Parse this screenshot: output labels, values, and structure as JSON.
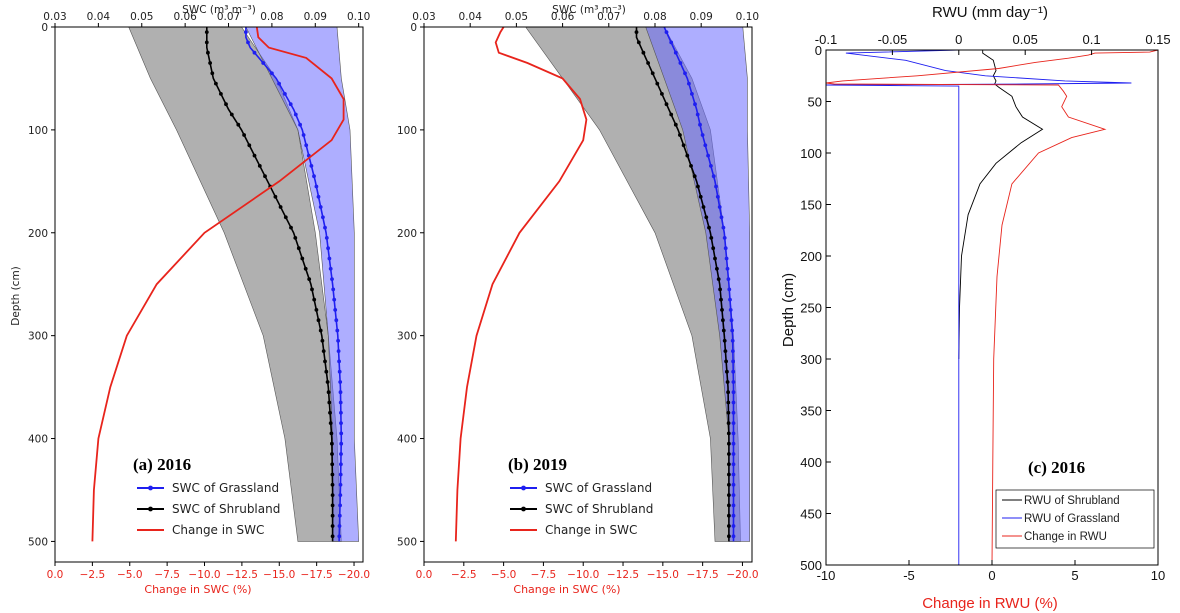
{
  "colors": {
    "grass": "#1f1ff0",
    "shrub": "#000000",
    "change": "#e8241c",
    "grass_band": "#6b6bff",
    "shrub_band": "#9a9a9a",
    "overlap_band": "#5a5a8c"
  },
  "chart_data": [
    {
      "type": "line",
      "panel_label": "(a) 2016",
      "x_top_label": "SWC (m³ m⁻³)",
      "x_top_ticks": [
        0.03,
        0.04,
        0.05,
        0.06,
        0.07,
        0.08,
        0.09,
        0.1
      ],
      "x_top_tick_labels": [
        "0.03",
        "0.04",
        "0.05",
        "0.06",
        "0.07",
        "0.08",
        "0.09",
        "0.10"
      ],
      "x_top_range": [
        0.03,
        0.101
      ],
      "x_bottom_label": "Change in SWC (%)",
      "x_bottom_ticks": [
        0,
        -2.5,
        -5,
        -7.5,
        -10,
        -12.5,
        -15,
        -17.5,
        -20
      ],
      "x_bottom_tick_labels": [
        "0.0",
        "−2.5",
        "−5.0",
        "−7.5",
        "−10.0",
        "−12.5",
        "−15.0",
        "−17.5",
        "−20.0"
      ],
      "x_bottom_range": [
        0,
        -20.6
      ],
      "y_label": "Depth (cm)",
      "y_ticks": [
        0,
        100,
        200,
        300,
        400,
        500
      ],
      "y_tick_labels": [
        "0",
        "100",
        "200",
        "300",
        "400",
        "500"
      ],
      "y_range": [
        0,
        520
      ],
      "y_inverted": true,
      "legend": [
        "SWC of Grassland",
        "SWC of Shrubland",
        "Change in SWC"
      ],
      "series": [
        {
          "name": "SWC of Grassland",
          "axis": "top",
          "depth": [
            0,
            10,
            20,
            30,
            50,
            80,
            100,
            150,
            200,
            250,
            300,
            350,
            400,
            450,
            500
          ],
          "values": [
            0.074,
            0.074,
            0.075,
            0.077,
            0.081,
            0.085,
            0.087,
            0.09,
            0.0925,
            0.094,
            0.0952,
            0.0958,
            0.096,
            0.0958,
            0.0955
          ]
        },
        {
          "name": "SWC of Shrubland",
          "axis": "top",
          "depth": [
            0,
            10,
            20,
            30,
            50,
            80,
            100,
            150,
            200,
            250,
            300,
            350,
            400,
            450,
            500
          ],
          "values": [
            0.065,
            0.065,
            0.065,
            0.0655,
            0.0665,
            0.07,
            0.073,
            0.079,
            0.085,
            0.089,
            0.0915,
            0.093,
            0.0938,
            0.094,
            0.094
          ]
        },
        {
          "name": "Change in SWC",
          "axis": "bottom",
          "depth": [
            0,
            10,
            20,
            30,
            50,
            70,
            90,
            110,
            150,
            200,
            250,
            300,
            350,
            400,
            450,
            500
          ],
          "values": [
            -13.5,
            -13.6,
            -14.3,
            -16.8,
            -18.5,
            -19.3,
            -19.3,
            -18.5,
            -15.0,
            -10.0,
            -6.8,
            -4.8,
            -3.7,
            -2.9,
            -2.6,
            -2.5
          ]
        }
      ],
      "bands": [
        {
          "name": "Shrubland range",
          "depth": [
            0,
            50,
            100,
            200,
            300,
            400,
            500
          ],
          "lower": [
            0.047,
            0.052,
            0.058,
            0.069,
            0.078,
            0.083,
            0.086
          ],
          "upper": [
            0.073,
            0.081,
            0.086,
            0.09,
            0.093,
            0.095,
            0.096
          ]
        },
        {
          "name": "Grassland range",
          "depth": [
            0,
            50,
            100,
            200,
            300,
            400,
            500
          ],
          "lower": [
            0.074,
            0.08,
            0.086,
            0.091,
            0.093,
            0.094,
            0.094
          ],
          "upper": [
            0.095,
            0.096,
            0.098,
            0.099,
            0.099,
            0.099,
            0.1
          ]
        }
      ]
    },
    {
      "type": "line",
      "panel_label": "(b) 2019",
      "x_top_label": "SWC (m³ m⁻³)",
      "x_top_ticks": [
        0.03,
        0.04,
        0.05,
        0.06,
        0.07,
        0.08,
        0.09,
        0.1
      ],
      "x_top_tick_labels": [
        "0.03",
        "0.04",
        "0.05",
        "0.06",
        "0.07",
        "0.08",
        "0.09",
        "0.10"
      ],
      "x_top_range": [
        0.03,
        0.101
      ],
      "x_bottom_label": "Change in SWC (%)",
      "x_bottom_ticks": [
        0,
        -2.5,
        -5,
        -7.5,
        -10,
        -12.5,
        -15,
        -17.5,
        -20
      ],
      "x_bottom_tick_labels": [
        "0.0",
        "−2.5",
        "−5.0",
        "−7.5",
        "−10.0",
        "−12.5",
        "−15.0",
        "−17.5",
        "−20.0"
      ],
      "x_bottom_range": [
        0,
        -20.6
      ],
      "y_ticks": [
        0,
        100,
        200,
        300,
        400,
        500
      ],
      "y_tick_labels": [
        "0",
        "100",
        "200",
        "300",
        "400",
        "500"
      ],
      "y_range": [
        0,
        520
      ],
      "y_inverted": true,
      "legend": [
        "SWC of Grassland",
        "SWC of Shrubland",
        "Change in SWC"
      ],
      "series": [
        {
          "name": "SWC of Grassland",
          "axis": "top",
          "depth": [
            0,
            10,
            20,
            30,
            50,
            80,
            100,
            150,
            200,
            250,
            300,
            350,
            400,
            450,
            500
          ],
          "values": [
            0.082,
            0.083,
            0.084,
            0.085,
            0.087,
            0.089,
            0.09,
            0.093,
            0.095,
            0.096,
            0.0968,
            0.097,
            0.097,
            0.097,
            0.097
          ]
        },
        {
          "name": "SWC of Shrubland",
          "axis": "top",
          "depth": [
            0,
            10,
            20,
            30,
            50,
            80,
            100,
            150,
            200,
            250,
            300,
            350,
            400,
            450,
            500
          ],
          "values": [
            0.076,
            0.076,
            0.077,
            0.078,
            0.08,
            0.083,
            0.085,
            0.089,
            0.092,
            0.094,
            0.095,
            0.0958,
            0.096,
            0.096,
            0.096
          ]
        },
        {
          "name": "Change in SWC",
          "axis": "bottom",
          "depth": [
            0,
            5,
            15,
            25,
            35,
            50,
            70,
            90,
            110,
            150,
            200,
            250,
            300,
            350,
            400,
            450,
            500
          ],
          "values": [
            -5.0,
            -4.8,
            -4.5,
            -4.7,
            -6.5,
            -8.7,
            -9.8,
            -10.2,
            -10.0,
            -8.5,
            -6.0,
            -4.3,
            -3.3,
            -2.7,
            -2.3,
            -2.1,
            -2.0
          ]
        }
      ],
      "bands": [
        {
          "name": "Shrubland range",
          "depth": [
            0,
            50,
            100,
            200,
            300,
            400,
            500
          ],
          "lower": [
            0.052,
            0.06,
            0.068,
            0.08,
            0.088,
            0.092,
            0.093
          ],
          "upper": [
            0.082,
            0.088,
            0.092,
            0.095,
            0.097,
            0.098,
            0.0985
          ]
        },
        {
          "name": "Grassland range",
          "depth": [
            0,
            50,
            100,
            200,
            300,
            400,
            500
          ],
          "lower": [
            0.078,
            0.082,
            0.086,
            0.091,
            0.094,
            0.096,
            0.096
          ],
          "upper": [
            0.099,
            0.1,
            0.1,
            0.1005,
            0.1005,
            0.1005,
            0.1005
          ]
        }
      ]
    },
    {
      "type": "line",
      "panel_label": "(c) 2016",
      "x_top_label": "RWU (mm day⁻¹)",
      "x_top_ticks": [
        -0.1,
        -0.05,
        0,
        0.05,
        0.1,
        0.15
      ],
      "x_top_tick_labels": [
        "-0.1",
        "-0.05",
        "0",
        "0.05",
        "0.1",
        "0.15"
      ],
      "x_top_range": [
        -0.1,
        0.15
      ],
      "x_bottom_label": "Change in RWU (%)",
      "x_bottom_ticks": [
        -10,
        -5,
        0,
        5,
        10
      ],
      "x_bottom_tick_labels": [
        "-10",
        "-5",
        "0",
        "5",
        "10"
      ],
      "x_bottom_range": [
        -10,
        10
      ],
      "y_label": "Depth (cm)",
      "y_ticks": [
        0,
        50,
        100,
        150,
        200,
        250,
        300,
        350,
        400,
        450,
        500
      ],
      "y_tick_labels": [
        "0",
        "50",
        "100",
        "150",
        "200",
        "250",
        "300",
        "350",
        "400",
        "450",
        "500"
      ],
      "y_range": [
        0,
        500
      ],
      "y_inverted": true,
      "legend": [
        "RWU of Shrubland",
        "RWU of Grassland",
        "Change in RWU"
      ],
      "series": [
        {
          "name": "RWU of Shrubland",
          "axis": "top",
          "depth": [
            0,
            3,
            10,
            20,
            25,
            30,
            33,
            36,
            45,
            55,
            65,
            77,
            90,
            110,
            130,
            160,
            200,
            250,
            300
          ],
          "values": [
            0.018,
            0.018,
            0.026,
            0.028,
            0.026,
            0.028,
            0.027,
            0.03,
            0.04,
            0.043,
            0.048,
            0.063,
            0.047,
            0.028,
            0.016,
            0.007,
            0.002,
            0.0005,
            0.0
          ]
        },
        {
          "name": "RWU of Grassland",
          "axis": "top",
          "depth": [
            0,
            3,
            10,
            20,
            25,
            30,
            32,
            33,
            34,
            35,
            36,
            40,
            100,
            200,
            300,
            500
          ],
          "values": [
            0.0,
            -0.085,
            -0.04,
            -0.01,
            0.02,
            0.08,
            0.13,
            0.05,
            -0.1,
            0.0,
            0.0,
            0.0,
            0.0,
            0.0,
            0.0,
            0.0
          ]
        },
        {
          "name": "Change in RWU",
          "axis": "bottom",
          "depth": [
            0,
            2,
            3,
            5,
            8,
            12,
            18,
            25,
            30,
            32,
            33,
            34,
            40,
            45,
            55,
            65,
            77,
            85,
            100,
            130,
            170,
            220,
            300,
            400,
            500
          ],
          "values": [
            10.0,
            9.5,
            6.2,
            5.8,
            4.6,
            2.6,
            0.4,
            -4.5,
            -9.0,
            -10.0,
            -9.5,
            4.0,
            4.3,
            4.5,
            4.2,
            4.6,
            6.8,
            4.8,
            2.8,
            1.2,
            0.6,
            0.3,
            0.1,
            0.05,
            0.0
          ]
        }
      ]
    }
  ]
}
